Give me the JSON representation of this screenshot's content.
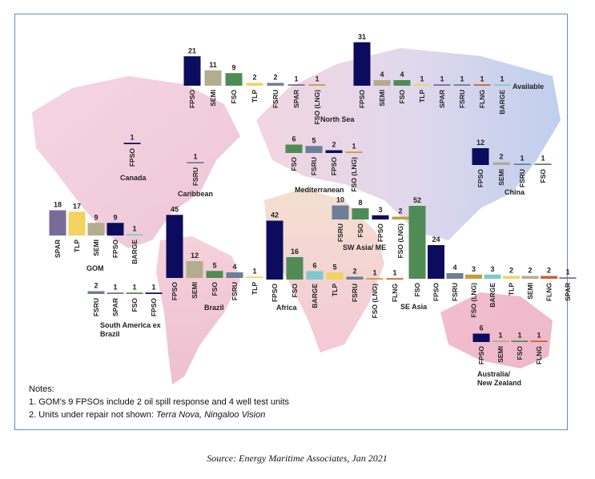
{
  "chart_data": {
    "type": "map_bars",
    "groups": [
      {
        "label": [
          "North Sea"
        ],
        "categories": [
          "FPSO",
          "SEMI",
          "FSO",
          "TLP",
          "FSRU",
          "SPAR",
          "FSO (LNG)"
        ],
        "values": [
          21,
          11,
          9,
          2,
          2,
          1,
          1
        ],
        "colors": [
          "#0c0c5e",
          "#b3ad8f",
          "#4f8c55",
          "#f2d35e",
          "#6b7f98",
          "#7a6a9a",
          "#c79b3c"
        ]
      },
      {
        "label": [
          "Available"
        ],
        "categories": [
          "FPSO",
          "SEMI",
          "FSO",
          "TLP",
          "SPAR",
          "FSRU",
          "FLNG",
          "BARGE"
        ],
        "values": [
          31,
          4,
          4,
          1,
          1,
          1,
          1,
          1
        ],
        "colors": [
          "#0c0c5e",
          "#b3ad8f",
          "#4f8c55",
          "#f2d35e",
          "#7a6a9a",
          "#6b7f98",
          "#d0602f",
          "#7fc8cf"
        ]
      },
      {
        "label": [
          "Canada"
        ],
        "categories": [
          "FPSO"
        ],
        "values": [
          1
        ],
        "colors": [
          "#0c0c5e"
        ]
      },
      {
        "label": [
          "Caribbean"
        ],
        "categories": [
          "FSRU"
        ],
        "values": [
          1
        ],
        "colors": [
          "#6b7f98"
        ]
      },
      {
        "label": [
          "Mediterranean"
        ],
        "categories": [
          "FSO",
          "FSRU",
          "FPSO",
          "FSO (LNG)"
        ],
        "values": [
          6,
          5,
          2,
          1
        ],
        "colors": [
          "#4f8c55",
          "#6b7f98",
          "#0c0c5e",
          "#c79b3c"
        ]
      },
      {
        "label": [
          "China"
        ],
        "categories": [
          "FPSO",
          "SEMI",
          "FSRU",
          "FSO"
        ],
        "values": [
          12,
          2,
          1,
          1
        ],
        "colors": [
          "#0c0c5e",
          "#b3ad8f",
          "#6b7f98",
          "#4f8c55"
        ]
      },
      {
        "label": [
          "GOM"
        ],
        "categories": [
          "SPAR",
          "TLP",
          "SEMI",
          "FPSO",
          "BARGE"
        ],
        "values": [
          18,
          17,
          9,
          9,
          1
        ],
        "colors": [
          "#7a6a9a",
          "#f2d35e",
          "#b3ad8f",
          "#0c0c5e",
          "#7fc8cf"
        ]
      },
      {
        "label": [
          "South America ex",
          "Brazil"
        ],
        "categories": [
          "FSRU",
          "SPAR",
          "FSO",
          "FPSO"
        ],
        "values": [
          2,
          1,
          1,
          1
        ],
        "colors": [
          "#6b7f98",
          "#7a6a9a",
          "#4f8c55",
          "#0c0c5e"
        ]
      },
      {
        "label": [
          "Brazil"
        ],
        "categories": [
          "FPSO",
          "SEMI",
          "FSO",
          "FSRU",
          "TLP"
        ],
        "values": [
          45,
          12,
          5,
          4,
          1
        ],
        "colors": [
          "#0c0c5e",
          "#b3ad8f",
          "#4f8c55",
          "#6b7f98",
          "#f2d35e"
        ]
      },
      {
        "label": [
          "Africa"
        ],
        "categories": [
          "FPSO",
          "FSO",
          "BARGE",
          "TLP",
          "FSRU",
          "FSO (LNG)",
          "FLNG"
        ],
        "values": [
          42,
          16,
          6,
          5,
          2,
          1,
          1
        ],
        "colors": [
          "#0c0c5e",
          "#4f8c55",
          "#7fc8cf",
          "#f2d35e",
          "#6b7f98",
          "#c79b3c",
          "#d0602f"
        ]
      },
      {
        "label": [
          "SW Asia/ ME"
        ],
        "categories": [
          "FSRU",
          "FSO",
          "FPSO",
          "FSO (LNG)"
        ],
        "values": [
          10,
          8,
          3,
          2
        ],
        "colors": [
          "#6b7f98",
          "#4f8c55",
          "#0c0c5e",
          "#c79b3c"
        ]
      },
      {
        "label": [
          "SE Asia"
        ],
        "categories": [
          "FSO",
          "FPSO",
          "FSRU",
          "FSO (LNG)",
          "BARGE",
          "TLP",
          "SEMI",
          "FLNG",
          "SPAR"
        ],
        "values": [
          52,
          24,
          4,
          3,
          3,
          2,
          2,
          2,
          1
        ],
        "colors": [
          "#4f8c55",
          "#0c0c5e",
          "#6b7f98",
          "#c79b3c",
          "#7fc8cf",
          "#f2d35e",
          "#b3ad8f",
          "#d0602f",
          "#7a6a9a"
        ]
      },
      {
        "label": [
          "Australia/",
          "New Zealand"
        ],
        "categories": [
          "FPSO",
          "SEMI",
          "FSO",
          "FLNG"
        ],
        "values": [
          6,
          1,
          1,
          1
        ],
        "colors": [
          "#0c0c5e",
          "#b3ad8f",
          "#4f8c55",
          "#d0602f"
        ]
      }
    ],
    "notes": {
      "heading": "Notes:",
      "items": [
        {
          "text": "1. GOM’s 9 FPSOs include 2 oil spill response and 4 well test units"
        },
        {
          "text": "2. Units under repair not shown:",
          "italic": "Terra Nova, Ningaloo Vision"
        }
      ]
    },
    "source": "Source: Energy Maritime Associates, Jan 2021"
  }
}
